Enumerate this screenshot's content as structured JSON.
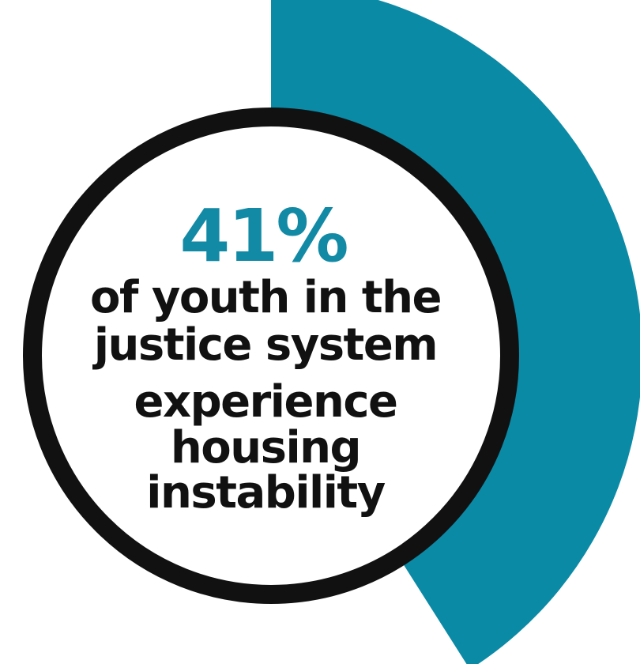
{
  "chart_data": {
    "type": "pie",
    "values": [
      41
    ],
    "max": 100,
    "labels": {
      "value_text": "41%",
      "caption_lines": [
        "of youth in the",
        "justice system",
        "experience",
        "housing",
        "instability"
      ]
    }
  },
  "colors": {
    "segment": "#0b8aa6",
    "ring": "#111111",
    "percent_text": "#138aa5",
    "caption_text": "#111111",
    "background": "#ffffff"
  }
}
